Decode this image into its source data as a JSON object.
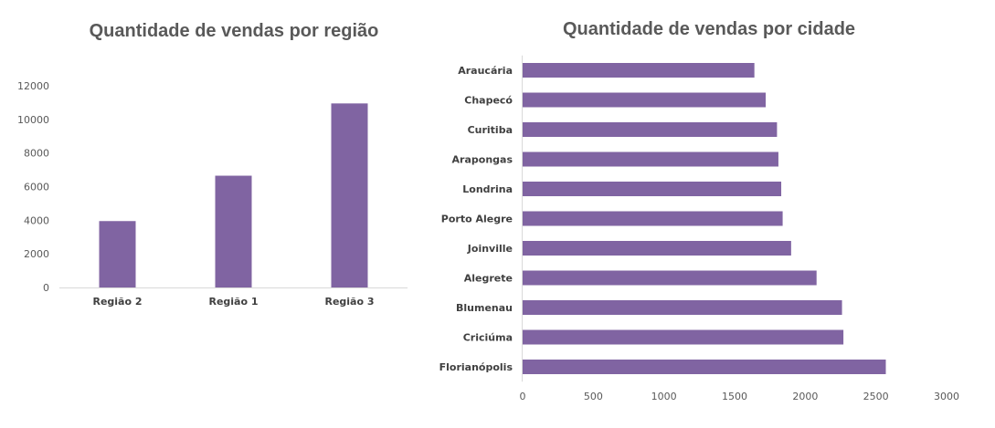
{
  "chart_data": [
    {
      "type": "bar",
      "orientation": "vertical",
      "title": "Quantidade de vendas por região",
      "categories": [
        "Região 2",
        "Região 1",
        "Região 3"
      ],
      "values": [
        3950,
        6650,
        10950
      ],
      "ylim": [
        0,
        12000
      ],
      "y_ticks": [
        "0",
        "2000",
        "4000",
        "6000",
        "8000",
        "10000",
        "12000"
      ],
      "grid": false,
      "legend": "none",
      "color": "#8064a2"
    },
    {
      "type": "bar",
      "orientation": "horizontal",
      "title": "Quantidade de vendas por cidade",
      "categories": [
        "Araucária",
        "Chapecó",
        "Curitiba",
        "Arapongas",
        "Londrina",
        "Porto Alegre",
        "Joinville",
        "Alegrete",
        "Blumenau",
        "Criciúma",
        "Florianópolis"
      ],
      "values": [
        1640,
        1720,
        1800,
        1810,
        1830,
        1840,
        1900,
        2080,
        2260,
        2270,
        2570
      ],
      "xlim": [
        0,
        3000
      ],
      "x_ticks": [
        "0",
        "500",
        "1000",
        "1500",
        "2000",
        "2500",
        "3000"
      ],
      "grid": false,
      "legend": "none",
      "color": "#8064a2"
    }
  ]
}
